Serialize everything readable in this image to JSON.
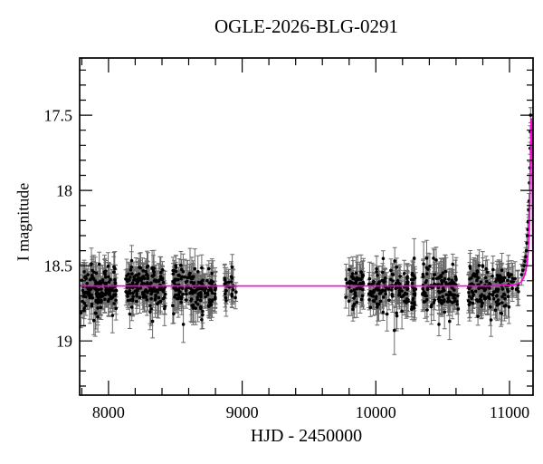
{
  "chart_data": {
    "type": "scatter",
    "title": "OGLE-2026-BLG-0291",
    "xlabel": "HJD - 2450000",
    "ylabel": "I magnitude",
    "xlim": [
      7784,
      11176
    ],
    "ylim_mag": [
      17.12,
      19.36
    ],
    "y_axis_inverted": true,
    "grid": false,
    "legend": "none",
    "x_major_ticks": [
      8000,
      9000,
      10000,
      11000
    ],
    "x_tick_labels": [
      "8000",
      "9000",
      "10000",
      "11000"
    ],
    "x_minor_step": 200,
    "y_major_ticks": [
      17.5,
      18.0,
      18.5,
      19.0
    ],
    "y_tick_labels": [
      "17.5",
      "18",
      "18.5",
      "19"
    ],
    "y_minor_step": 0.1,
    "baseline_mag": 18.635,
    "colors": {
      "points": "#000000",
      "error_bars": "#6b6b6b",
      "model": "#ff00dd",
      "frame": "#000000",
      "background": "#ffffff"
    },
    "seed": 7,
    "clusters": [
      {
        "x": [
          7790,
          8062
        ],
        "n": 150,
        "mean": 18.65,
        "sigma": 0.07
      },
      {
        "x": [
          8128,
          8425
        ],
        "n": 160,
        "mean": 18.65,
        "sigma": 0.07
      },
      {
        "x": [
          8480,
          8805
        ],
        "n": 160,
        "mean": 18.65,
        "sigma": 0.07
      },
      {
        "x": [
          8865,
          8955
        ],
        "n": 26,
        "mean": 18.64,
        "sigma": 0.06
      },
      {
        "x": [
          9772,
          9908
        ],
        "n": 55,
        "mean": 18.65,
        "sigma": 0.07
      },
      {
        "x": [
          9948,
          10300
        ],
        "n": 140,
        "mean": 18.65,
        "sigma": 0.07
      },
      {
        "x": [
          10348,
          10618
        ],
        "n": 115,
        "mean": 18.65,
        "sigma": 0.07
      },
      {
        "x": [
          10692,
          11000
        ],
        "n": 140,
        "mean": 18.65,
        "sigma": 0.07
      },
      {
        "x": [
          11012,
          11072
        ],
        "n": 10,
        "mean": 18.62,
        "sigma": 0.045
      }
    ],
    "outliers": [
      [
        7920,
        18.84,
        0.1
      ],
      [
        8330,
        18.87,
        0.11
      ],
      [
        8560,
        18.89,
        0.12
      ],
      [
        10139,
        18.93,
        0.16
      ],
      [
        10552,
        18.87,
        0.12
      ],
      [
        10862,
        18.86,
        0.11
      ]
    ],
    "event_points": [
      [
        11090,
        18.56,
        0.07
      ],
      [
        11100,
        18.53,
        0.07
      ],
      [
        11108,
        18.5,
        0.06
      ],
      [
        11115,
        18.47,
        0.06
      ],
      [
        11121,
        18.44,
        0.06
      ],
      [
        11126,
        18.4,
        0.06
      ],
      [
        11130,
        18.35,
        0.06
      ],
      [
        11134,
        18.3,
        0.05
      ],
      [
        11137,
        18.26,
        0.05
      ],
      [
        11140,
        18.21,
        0.05
      ],
      [
        11143,
        18.13,
        0.05
      ],
      [
        11146,
        18.07,
        0.05
      ],
      [
        11149,
        17.95,
        0.05
      ],
      [
        11152,
        17.85,
        0.04
      ],
      [
        11154,
        17.72,
        0.04
      ],
      [
        11156,
        17.61,
        0.04
      ],
      [
        11158,
        17.5,
        0.05
      ]
    ],
    "model_curve": [
      [
        7784,
        18.635
      ],
      [
        10850,
        18.635
      ],
      [
        10950,
        18.632
      ],
      [
        11020,
        18.63
      ],
      [
        11060,
        18.622
      ],
      [
        11085,
        18.61
      ],
      [
        11105,
        18.582
      ],
      [
        11120,
        18.545
      ],
      [
        11132,
        18.485
      ],
      [
        11140,
        18.4
      ],
      [
        11146,
        18.3
      ],
      [
        11150,
        18.19
      ],
      [
        11153,
        18.05
      ],
      [
        11156,
        17.88
      ],
      [
        11158,
        17.74
      ],
      [
        11160,
        17.62
      ],
      [
        11162,
        17.535
      ],
      [
        11164,
        17.52
      ],
      [
        11166,
        17.575
      ],
      [
        11168,
        17.715
      ],
      [
        11170,
        17.92
      ],
      [
        11172,
        18.18
      ],
      [
        11174,
        18.42
      ],
      [
        11176,
        18.6
      ]
    ]
  }
}
